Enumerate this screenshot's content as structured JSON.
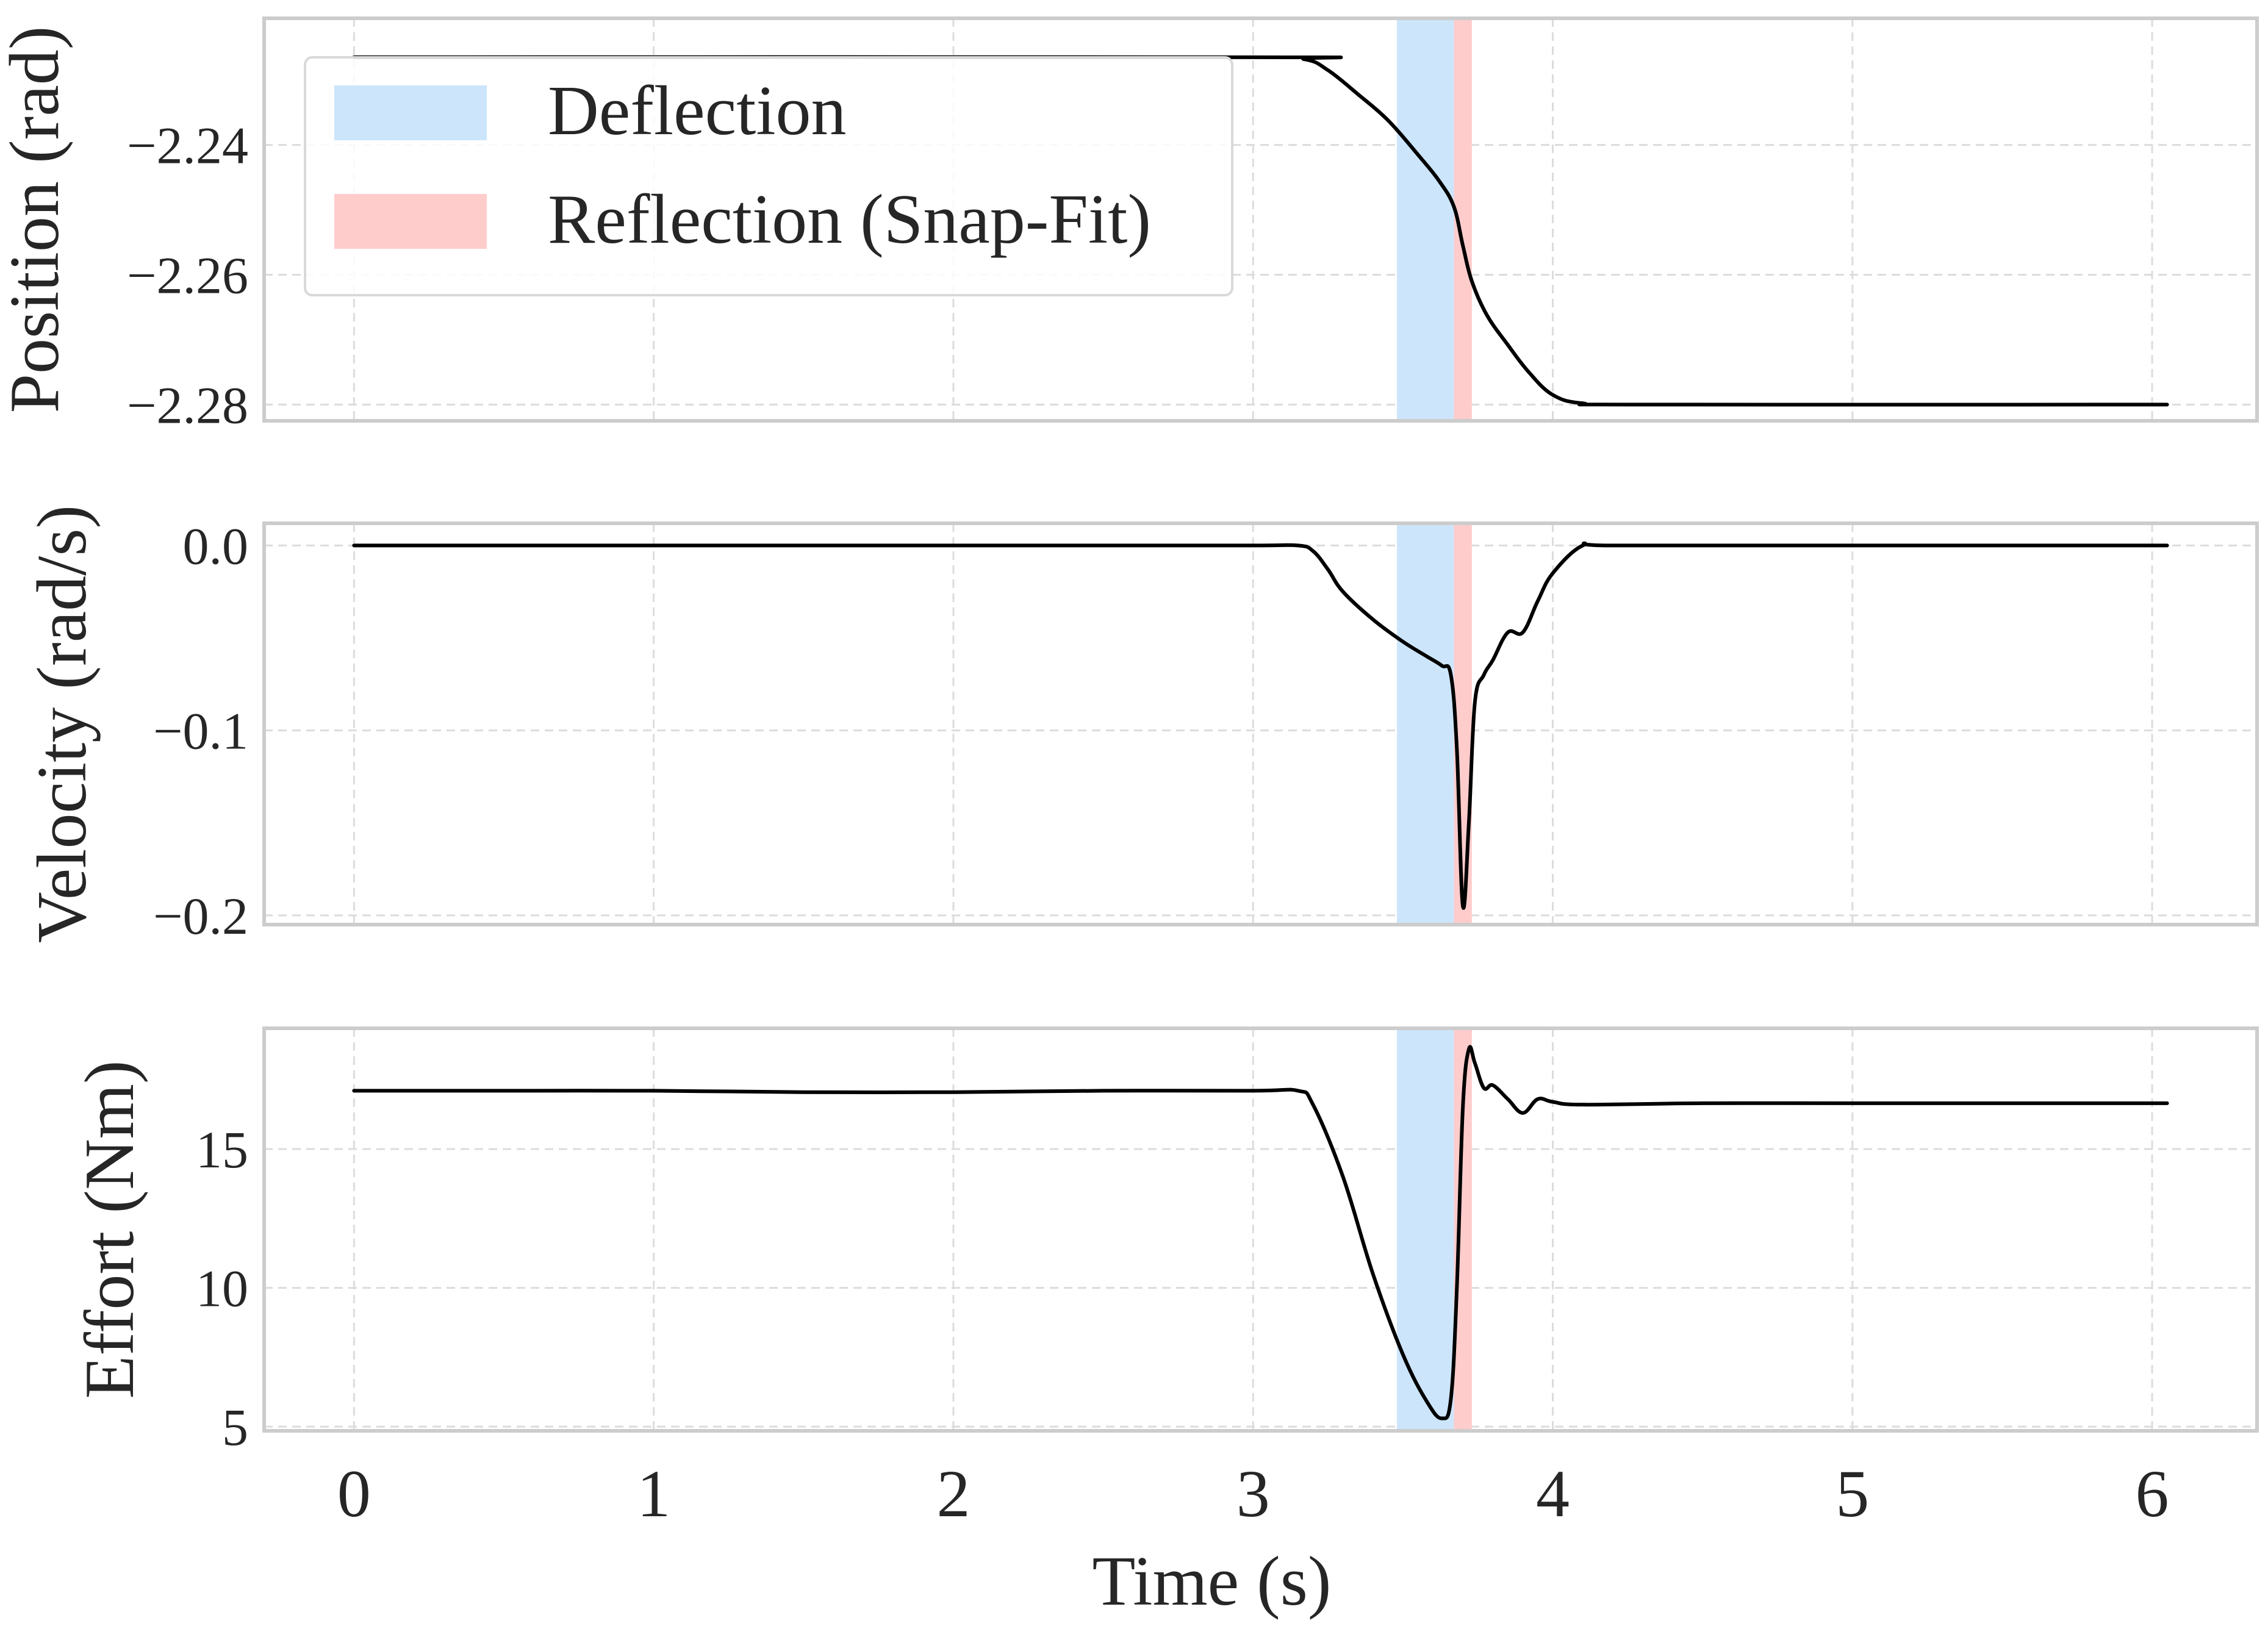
{
  "chart_data": [
    {
      "type": "line",
      "ylabel": "Position (rad)",
      "xlabel": "",
      "xlim": [
        -0.3,
        6.35
      ],
      "ylim": [
        -2.2825,
        -2.2205
      ],
      "yticks": [
        -2.24,
        -2.26,
        -2.28
      ],
      "ytick_labels": [
        "−2.24",
        "−2.26",
        "−2.28"
      ],
      "grid": true,
      "legend": {
        "placement": "top-left",
        "entries": [
          {
            "label": "Deflection",
            "color": "#cce5fb"
          },
          {
            "label": "Reflection (Snap-Fit)",
            "color": "#ffcccc"
          }
        ]
      },
      "series": [
        {
          "name": "position",
          "color": "#000000",
          "x": [
            0,
            3.0,
            3.17,
            3.25,
            3.35,
            3.45,
            3.55,
            3.62,
            3.67,
            3.7,
            3.73,
            3.78,
            3.85,
            3.92,
            4.0,
            4.1,
            4.3,
            6.05
          ],
          "y": [
            -2.2265,
            -2.2265,
            -2.2268,
            -2.2285,
            -2.2322,
            -2.2362,
            -2.2415,
            -2.2455,
            -2.2495,
            -2.2555,
            -2.261,
            -2.2662,
            -2.2708,
            -2.275,
            -2.2785,
            -2.2798,
            -2.28,
            -2.28
          ]
        }
      ]
    },
    {
      "type": "line",
      "ylabel": "Velocity (rad/s)",
      "xlabel": "",
      "xlim": [
        -0.3,
        6.35
      ],
      "ylim": [
        -0.205,
        0.012
      ],
      "yticks": [
        0.0,
        -0.1,
        -0.2
      ],
      "ytick_labels": [
        "0.0",
        "−0.1",
        "−0.2"
      ],
      "grid": true,
      "series": [
        {
          "name": "velocity",
          "color": "#000000",
          "x": [
            0,
            0.5,
            1.0,
            1.5,
            2.0,
            2.5,
            3.0,
            3.15,
            3.2,
            3.25,
            3.3,
            3.4,
            3.5,
            3.58,
            3.63,
            3.66,
            3.68,
            3.7,
            3.72,
            3.74,
            3.77,
            3.8,
            3.85,
            3.9,
            3.95,
            4.0,
            4.1,
            4.2,
            5.0,
            6.05
          ],
          "y": [
            0.0,
            0.0,
            0.0,
            0.0,
            0.0,
            0.0,
            0.0,
            0.0,
            -0.003,
            -0.013,
            -0.025,
            -0.04,
            -0.052,
            -0.06,
            -0.065,
            -0.07,
            -0.11,
            -0.195,
            -0.15,
            -0.085,
            -0.07,
            -0.062,
            -0.047,
            -0.047,
            -0.03,
            -0.015,
            0.0,
            0.0,
            0.0,
            0.0
          ]
        }
      ]
    },
    {
      "type": "line",
      "ylabel": "Effort (Nm)",
      "xlabel": "Time (s)",
      "xlim": [
        -0.3,
        6.35
      ],
      "ylim": [
        4.85,
        19.35
      ],
      "xticks": [
        0,
        1,
        2,
        3,
        4,
        5,
        6
      ],
      "xtick_labels": [
        "0",
        "1",
        "2",
        "3",
        "4",
        "5",
        "6"
      ],
      "yticks": [
        15,
        10,
        5
      ],
      "ytick_labels": [
        "15",
        "10",
        "5"
      ],
      "grid": true,
      "series": [
        {
          "name": "effort",
          "color": "#000000",
          "x": [
            0,
            0.5,
            1.0,
            1.5,
            2.0,
            2.5,
            3.0,
            3.15,
            3.2,
            3.3,
            3.4,
            3.5,
            3.58,
            3.63,
            3.66,
            3.68,
            3.7,
            3.72,
            3.74,
            3.77,
            3.8,
            3.85,
            3.9,
            3.95,
            4.0,
            4.1,
            4.5,
            5.0,
            6.05
          ],
          "y": [
            17.1,
            17.1,
            17.1,
            17.05,
            17.05,
            17.1,
            17.1,
            17.1,
            16.6,
            14.0,
            10.5,
            7.6,
            5.9,
            5.3,
            6.0,
            10.0,
            16.5,
            18.6,
            18.1,
            17.2,
            17.3,
            16.8,
            16.3,
            16.8,
            16.7,
            16.6,
            16.65,
            16.65,
            16.65
          ]
        }
      ]
    }
  ],
  "shaded_regions": [
    {
      "name": "Deflection",
      "x_start": 3.48,
      "x_end": 3.67,
      "color": "#cce5fb"
    },
    {
      "name": "Reflection (Snap-Fit)",
      "x_start": 3.67,
      "x_end": 3.73,
      "color": "#ffcccc"
    }
  ]
}
